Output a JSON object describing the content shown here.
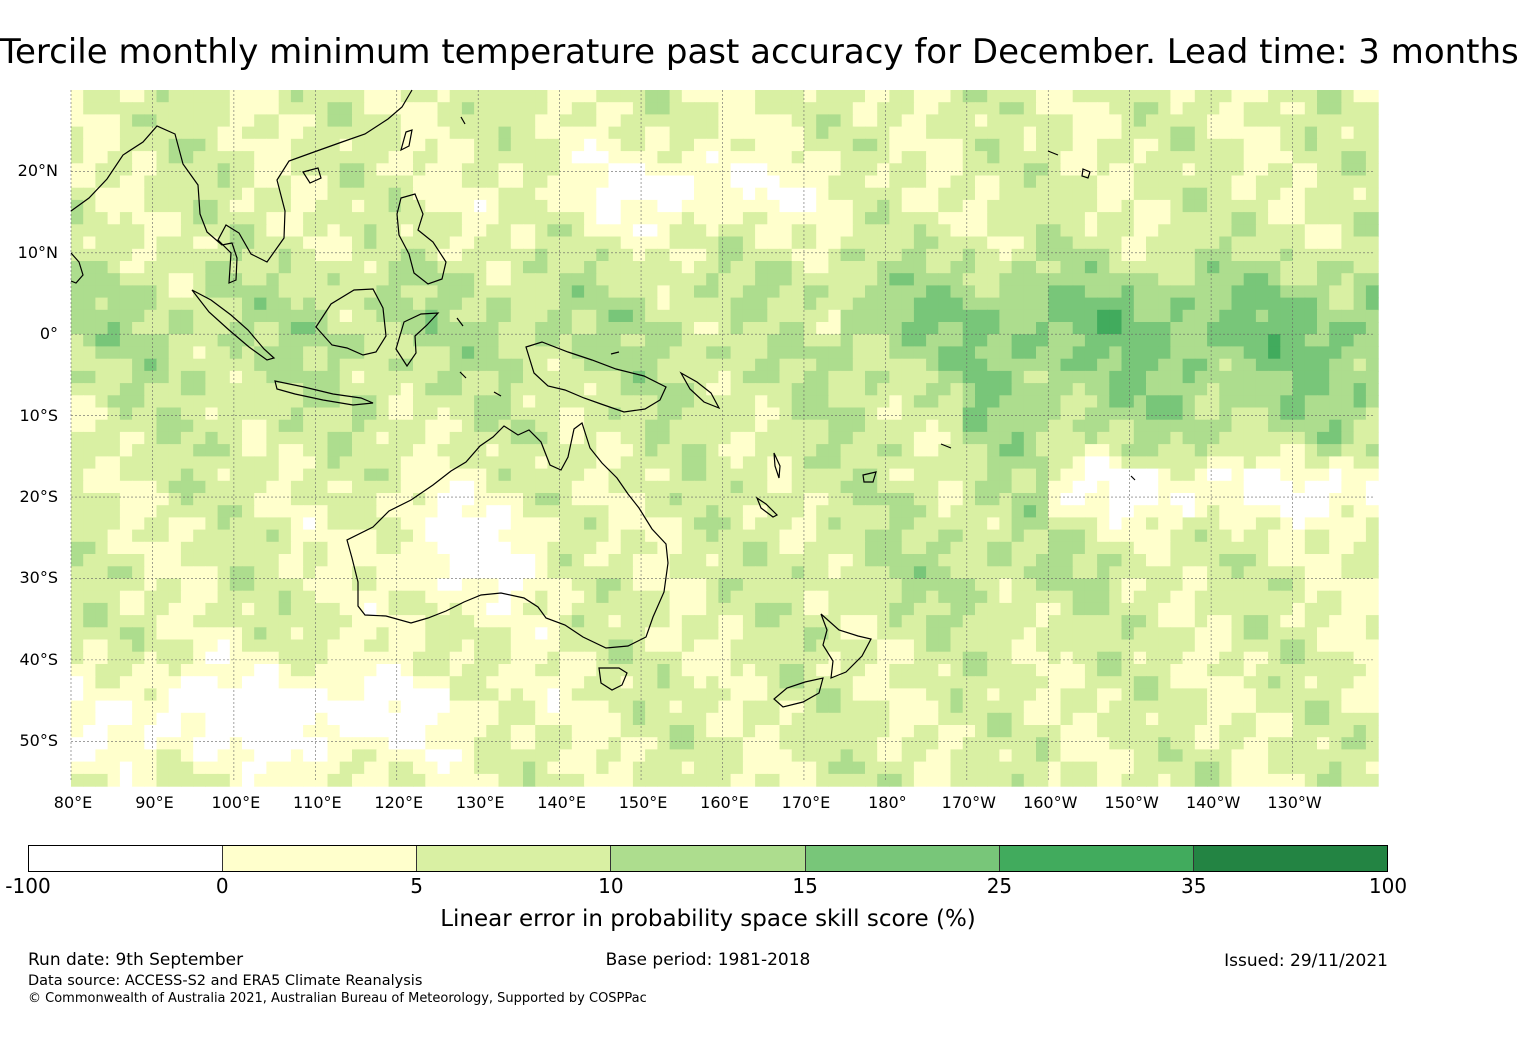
{
  "title": "Tercile monthly minimum temperature past accuracy for December. Lead time: 3 months",
  "map": {
    "lat_labels": [
      {
        "text": "20°N",
        "lat": 20
      },
      {
        "text": "10°N",
        "lat": 10
      },
      {
        "text": "0°",
        "lat": 0
      },
      {
        "text": "10°S",
        "lat": -10
      },
      {
        "text": "20°S",
        "lat": -20
      },
      {
        "text": "30°S",
        "lat": -30
      },
      {
        "text": "40°S",
        "lat": -40
      },
      {
        "text": "50°S",
        "lat": -50
      }
    ],
    "lon_labels": [
      {
        "text": "80°E",
        "lon": 80
      },
      {
        "text": "90°E",
        "lon": 90
      },
      {
        "text": "100°E",
        "lon": 100
      },
      {
        "text": "110°E",
        "lon": 110
      },
      {
        "text": "120°E",
        "lon": 120
      },
      {
        "text": "130°E",
        "lon": 130
      },
      {
        "text": "140°E",
        "lon": 140
      },
      {
        "text": "150°E",
        "lon": 150
      },
      {
        "text": "160°E",
        "lon": 160
      },
      {
        "text": "170°E",
        "lon": 170
      },
      {
        "text": "180°",
        "lon": 180
      },
      {
        "text": "170°W",
        "lon": 190
      },
      {
        "text": "160°W",
        "lon": 200
      },
      {
        "text": "150°W",
        "lon": 210
      },
      {
        "text": "140°W",
        "lon": 220
      },
      {
        "text": "130°W",
        "lon": 230
      }
    ],
    "lon_range": [
      80,
      240
    ],
    "lat_range": [
      -55,
      30
    ],
    "gridlines": true
  },
  "legend": {
    "label": "Linear error in probability space skill score (%)",
    "ticks": [
      "-100",
      "0",
      "5",
      "10",
      "15",
      "25",
      "35",
      "100"
    ],
    "colors": [
      "#ffffff",
      "#ffffcc",
      "#d9f0a3",
      "#addd8e",
      "#78c679",
      "#41ab5d",
      "#238443"
    ]
  },
  "footer": {
    "run_date": "Run date: 9th September",
    "base_period": "Base period: 1981-2018",
    "issued": "Issued: 29/11/2021",
    "data_source": "Data source: ACCESS-S2 and ERA5 Climate Reanalysis",
    "copyright": "© Commonwealth of Australia 2021, Australian Bureau of Meteorology, Supported by COSPPac"
  }
}
